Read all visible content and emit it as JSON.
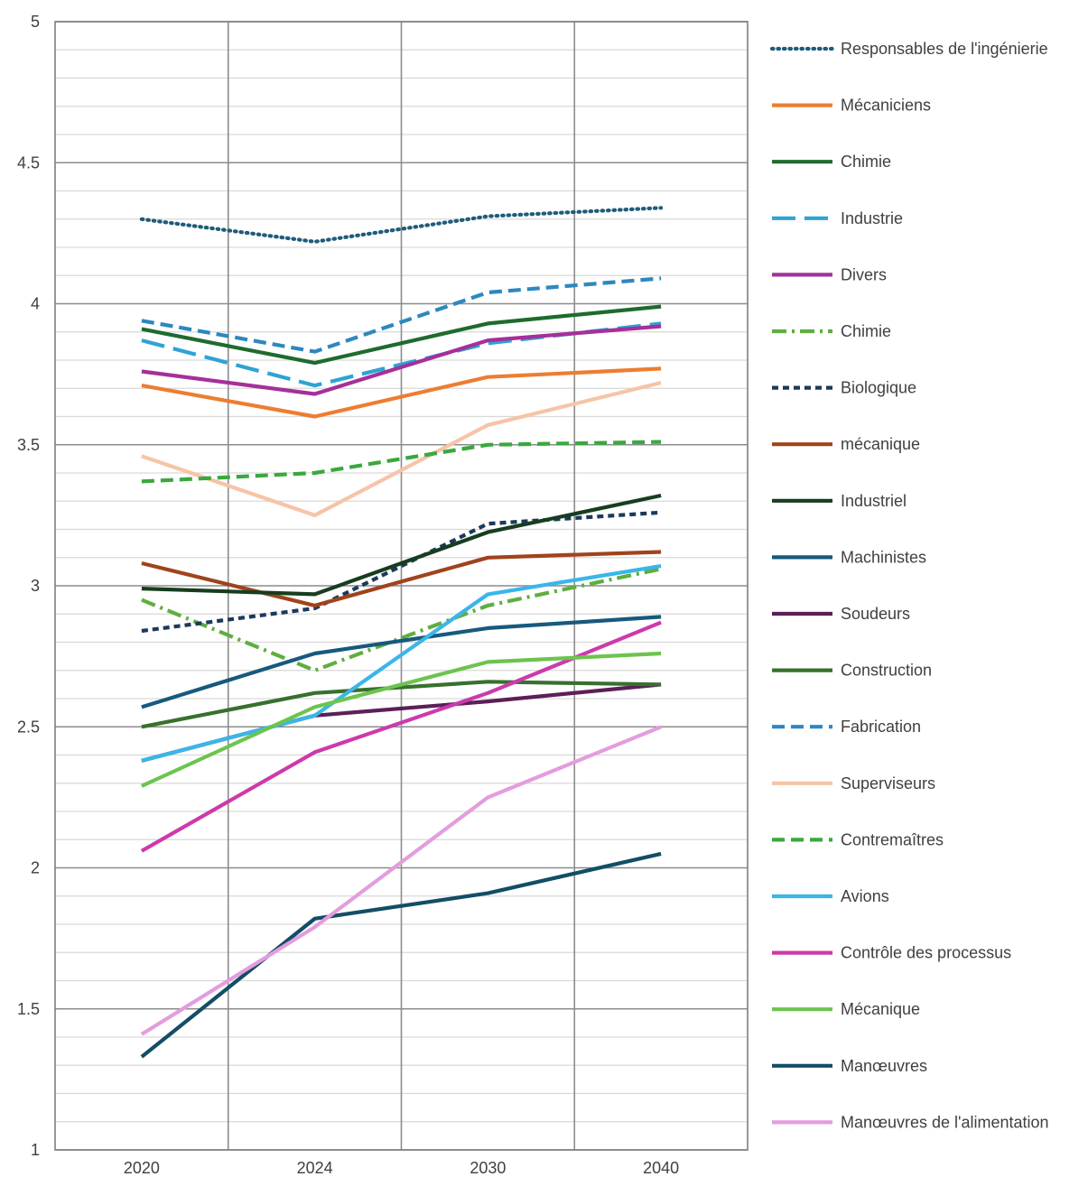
{
  "chart_data": {
    "type": "line",
    "title": "",
    "xlabel": "",
    "ylabel": "",
    "categories": [
      "2020",
      "2024",
      "2030",
      "2040"
    ],
    "ylim": [
      1,
      5
    ],
    "yticks": [
      "1",
      "1.5",
      "2",
      "2.5",
      "3",
      "3.5",
      "4",
      "4.5",
      "5"
    ],
    "grid": {
      "major_y": true,
      "minor_y": true,
      "major_x": true
    },
    "legend": "right",
    "series": [
      {
        "name": "Responsables de l'ingénierie",
        "values": [
          4.3,
          4.22,
          4.31,
          4.34
        ],
        "color": "#1f5c7a",
        "dash": "dotted"
      },
      {
        "name": "Mécaniciens",
        "values": [
          3.71,
          3.6,
          3.74,
          3.77
        ],
        "color": "#ed7d31",
        "dash": "solid"
      },
      {
        "name": "Chimie",
        "values": [
          3.91,
          3.79,
          3.93,
          3.99
        ],
        "color": "#1e6b2e",
        "dash": "solid"
      },
      {
        "name": "Industrie",
        "values": [
          3.87,
          3.71,
          3.86,
          3.93
        ],
        "color": "#2ea3d5",
        "dash": "longdash"
      },
      {
        "name": "Divers",
        "values": [
          3.76,
          3.68,
          3.87,
          3.92
        ],
        "color": "#a4309a",
        "dash": "solid"
      },
      {
        "name": "Chimie",
        "values": [
          2.95,
          2.7,
          2.93,
          3.06
        ],
        "color": "#5fae3e",
        "dash": "dashdot"
      },
      {
        "name": "Biologique",
        "values": [
          2.84,
          2.92,
          3.22,
          3.26
        ],
        "color": "#1b3a5a",
        "dash": "shortdash"
      },
      {
        "name": "mécanique",
        "values": [
          3.08,
          2.93,
          3.1,
          3.12
        ],
        "color": "#a0431b",
        "dash": "solid"
      },
      {
        "name": "Industriel",
        "values": [
          2.99,
          2.97,
          3.19,
          3.32
        ],
        "color": "#173d1f",
        "dash": "solid"
      },
      {
        "name": "Machinistes",
        "values": [
          2.57,
          2.76,
          2.85,
          2.89
        ],
        "color": "#165a7d",
        "dash": "solid"
      },
      {
        "name": "Soudeurs",
        "values": [
          2.38,
          2.54,
          2.59,
          2.65
        ],
        "color": "#5c1f58",
        "dash": "solid"
      },
      {
        "name": "Construction",
        "values": [
          2.5,
          2.62,
          2.66,
          2.65
        ],
        "color": "#37712d",
        "dash": "solid"
      },
      {
        "name": "Fabrication",
        "values": [
          3.94,
          3.83,
          4.04,
          4.09
        ],
        "color": "#2d88bf",
        "dash": "dash"
      },
      {
        "name": "Superviseurs",
        "values": [
          3.46,
          3.25,
          3.57,
          3.72
        ],
        "color": "#f6c4a6",
        "dash": "solid"
      },
      {
        "name": "Contremaîtres",
        "values": [
          3.37,
          3.4,
          3.5,
          3.51
        ],
        "color": "#3aa83f",
        "dash": "dash"
      },
      {
        "name": "Avions",
        "values": [
          2.38,
          2.54,
          2.97,
          3.07
        ],
        "color": "#3ab6e8",
        "dash": "solid"
      },
      {
        "name": "Contrôle des processus",
        "values": [
          2.06,
          2.41,
          2.62,
          2.87
        ],
        "color": "#cc3aac",
        "dash": "solid"
      },
      {
        "name": "Mécanique",
        "values": [
          2.29,
          2.57,
          2.73,
          2.76
        ],
        "color": "#6cc44f",
        "dash": "solid"
      },
      {
        "name": "Manœuvres",
        "values": [
          1.33,
          1.82,
          1.91,
          2.05
        ],
        "color": "#134d66",
        "dash": "solid"
      },
      {
        "name": "Manœuvres de l'alimentation",
        "values": [
          1.41,
          1.79,
          2.25,
          2.5
        ],
        "color": "#e39ddf",
        "dash": "solid"
      }
    ]
  }
}
